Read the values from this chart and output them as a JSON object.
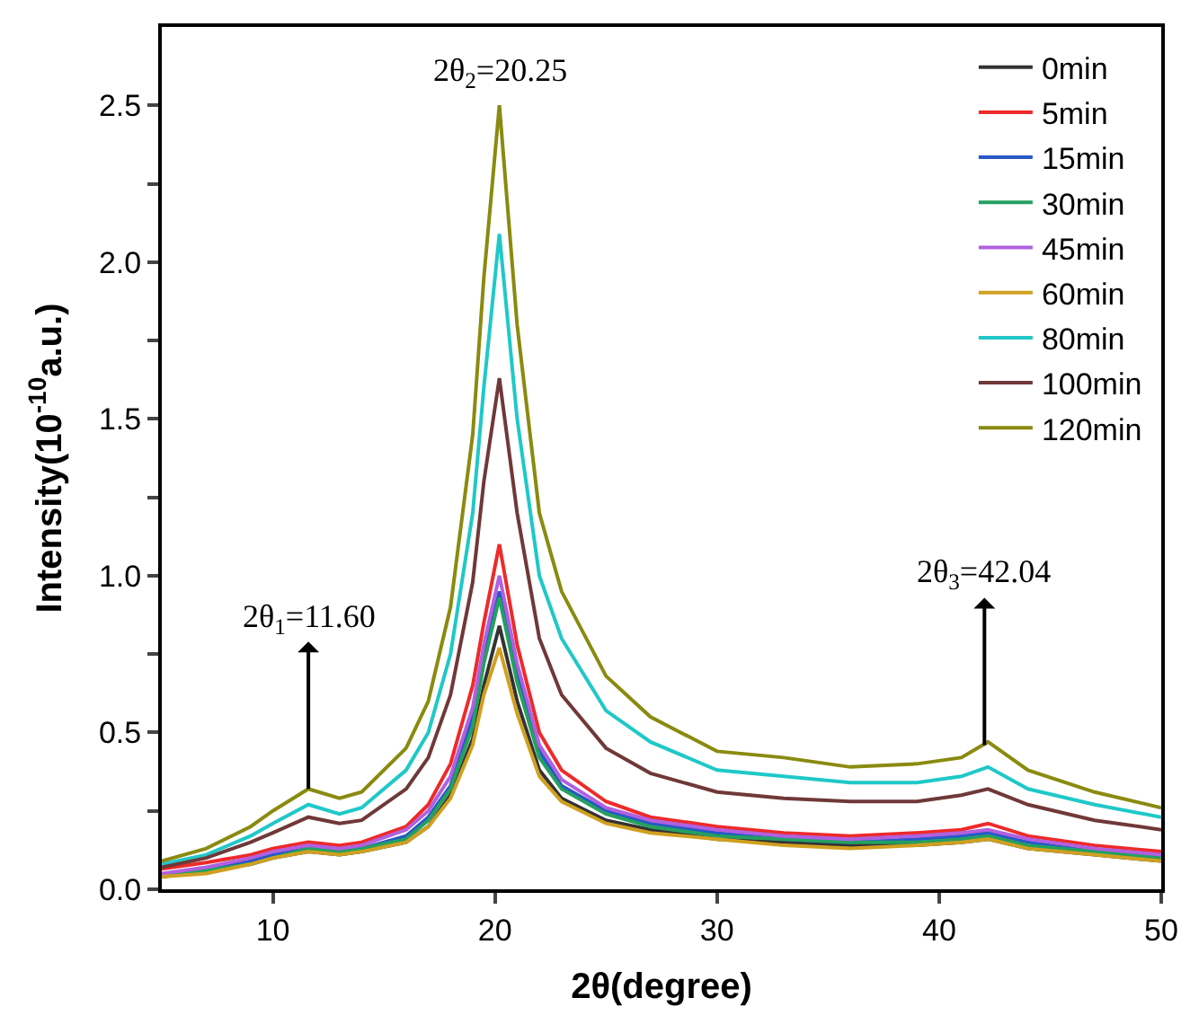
{
  "chart_data": {
    "type": "line",
    "xlabel": "2θ(degree)",
    "ylabel": "Intensity(10$^{-10}$a.u.)",
    "x": [
      5,
      7,
      9,
      10,
      11.6,
      13,
      14,
      16,
      17,
      18,
      19,
      19.5,
      20.2,
      21,
      22,
      23,
      25,
      27,
      30,
      33,
      36,
      39,
      41,
      42.2,
      44,
      47,
      50
    ],
    "series": [
      {
        "name": "0min",
        "color": "#333333",
        "values": [
          0.04,
          0.06,
          0.08,
          0.1,
          0.12,
          0.11,
          0.12,
          0.15,
          0.2,
          0.3,
          0.48,
          0.65,
          0.84,
          0.6,
          0.38,
          0.29,
          0.22,
          0.19,
          0.16,
          0.15,
          0.14,
          0.14,
          0.15,
          0.16,
          0.13,
          0.11,
          0.09
        ]
      },
      {
        "name": "5min",
        "color": "#ee2a2a",
        "values": [
          0.065,
          0.085,
          0.11,
          0.13,
          0.15,
          0.14,
          0.15,
          0.2,
          0.27,
          0.4,
          0.65,
          0.85,
          1.1,
          0.78,
          0.5,
          0.38,
          0.28,
          0.23,
          0.2,
          0.18,
          0.17,
          0.18,
          0.19,
          0.21,
          0.17,
          0.14,
          0.12
        ]
      },
      {
        "name": "15min",
        "color": "#2858c8",
        "values": [
          0.04,
          0.06,
          0.09,
          0.11,
          0.13,
          0.12,
          0.13,
          0.17,
          0.23,
          0.33,
          0.55,
          0.74,
          0.95,
          0.68,
          0.44,
          0.33,
          0.25,
          0.21,
          0.18,
          0.16,
          0.15,
          0.16,
          0.17,
          0.18,
          0.15,
          0.12,
          0.11
        ]
      },
      {
        "name": "30min",
        "color": "#24a060",
        "values": [
          0.04,
          0.06,
          0.08,
          0.1,
          0.13,
          0.12,
          0.13,
          0.16,
          0.22,
          0.32,
          0.52,
          0.72,
          0.93,
          0.66,
          0.42,
          0.32,
          0.24,
          0.2,
          0.17,
          0.16,
          0.15,
          0.15,
          0.16,
          0.17,
          0.14,
          0.12,
          0.1
        ]
      },
      {
        "name": "45min",
        "color": "#b060e0",
        "values": [
          0.05,
          0.07,
          0.1,
          0.12,
          0.14,
          0.13,
          0.14,
          0.19,
          0.25,
          0.36,
          0.58,
          0.78,
          1.0,
          0.72,
          0.46,
          0.35,
          0.26,
          0.22,
          0.19,
          0.17,
          0.16,
          0.17,
          0.18,
          0.19,
          0.16,
          0.13,
          0.11
        ]
      },
      {
        "name": "60min",
        "color": "#d0a020",
        "values": [
          0.04,
          0.05,
          0.08,
          0.1,
          0.12,
          0.11,
          0.12,
          0.15,
          0.2,
          0.29,
          0.46,
          0.62,
          0.77,
          0.56,
          0.36,
          0.28,
          0.21,
          0.18,
          0.16,
          0.14,
          0.13,
          0.14,
          0.15,
          0.16,
          0.13,
          0.11,
          0.09
        ]
      },
      {
        "name": "80min",
        "color": "#20c8c8",
        "values": [
          0.08,
          0.11,
          0.17,
          0.21,
          0.27,
          0.24,
          0.26,
          0.38,
          0.5,
          0.75,
          1.2,
          1.6,
          2.09,
          1.5,
          1.0,
          0.8,
          0.57,
          0.47,
          0.38,
          0.36,
          0.34,
          0.34,
          0.36,
          0.39,
          0.32,
          0.27,
          0.23
        ]
      },
      {
        "name": "100min",
        "color": "#703838",
        "values": [
          0.07,
          0.1,
          0.15,
          0.18,
          0.23,
          0.21,
          0.22,
          0.32,
          0.42,
          0.62,
          0.98,
          1.3,
          1.63,
          1.2,
          0.8,
          0.62,
          0.45,
          0.37,
          0.31,
          0.29,
          0.28,
          0.28,
          0.3,
          0.32,
          0.27,
          0.22,
          0.19
        ]
      },
      {
        "name": "120min",
        "color": "#8a8a10",
        "values": [
          0.09,
          0.13,
          0.2,
          0.25,
          0.32,
          0.29,
          0.31,
          0.45,
          0.6,
          0.9,
          1.45,
          1.95,
          2.5,
          1.8,
          1.2,
          0.95,
          0.68,
          0.55,
          0.44,
          0.42,
          0.39,
          0.4,
          0.42,
          0.47,
          0.38,
          0.31,
          0.26
        ]
      }
    ],
    "xlim": [
      5,
      50
    ],
    "xticks": [
      10,
      20,
      30,
      40,
      50
    ],
    "ylim": [
      0,
      2.75
    ],
    "yticks": [
      {
        "value": 0,
        "label": "0.0"
      },
      {
        "value": 0.25,
        "label": null
      },
      0.5,
      {
        "value": 0.75,
        "label": null
      },
      {
        "value": 1,
        "label": "1.0"
      },
      {
        "value": 1.25,
        "label": null
      },
      1.5,
      {
        "value": 1.75,
        "label": null
      },
      {
        "value": 2,
        "label": "2.0"
      },
      {
        "value": 2.25,
        "label": null
      },
      2.5
    ],
    "annotations": [
      {
        "text": "2θ$_{1}$=11.60",
        "x": 11.6,
        "y": 0.32
      },
      {
        "text": "2θ$_{2}$=20.25",
        "x": 20.25,
        "y": 2.5
      },
      {
        "text": "2θ$_{3}$=42.04",
        "x": 42.04,
        "y": 0.46
      }
    ],
    "legend": "top right",
    "grid": false,
    "marker": "none",
    "line_style": "solid"
  }
}
